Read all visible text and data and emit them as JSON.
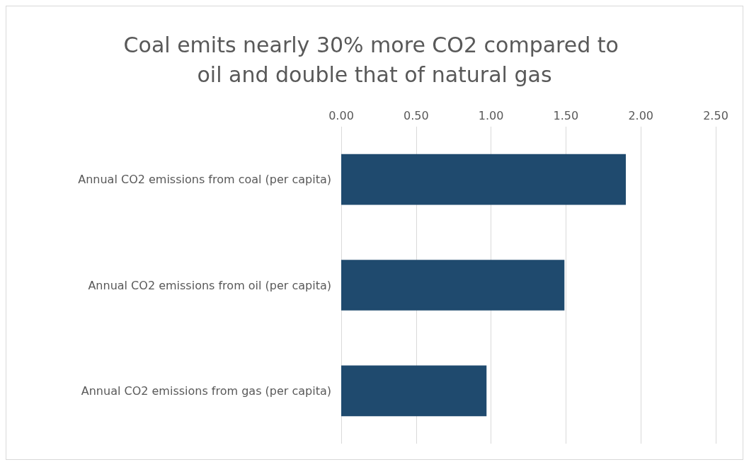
{
  "chart_data": {
    "type": "bar",
    "orientation": "horizontal",
    "title": "Coal emits nearly 30% more CO2 compared to oil and double that of natural gas",
    "categories": [
      "Annual CO2 emissions from coal (per capita)",
      "Annual CO2 emissions from oil (per capita)",
      "Annual CO2 emissions from gas (per capita)"
    ],
    "values": [
      1.9,
      1.49,
      0.97
    ],
    "color": "#1f4a6e",
    "xlim": [
      0,
      2.5
    ],
    "xticks": [
      {
        "value": 0,
        "label": "0.00"
      },
      {
        "value": 0.5,
        "label": "0.50"
      },
      {
        "value": 1,
        "label": "1.00"
      },
      {
        "value": 1.5,
        "label": "1.50"
      },
      {
        "value": 2,
        "label": "2.00"
      },
      {
        "value": 2.5,
        "label": "2.50"
      }
    ],
    "grid": "x"
  }
}
